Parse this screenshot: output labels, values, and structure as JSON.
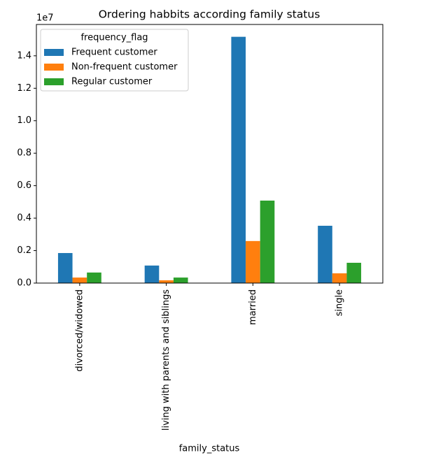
{
  "chart_data": {
    "type": "bar",
    "title": "Ordering habbits according family status",
    "x_label": "family_status",
    "scale_label": "1e7",
    "categories": [
      "divorced/widowed",
      "living with parents and siblings",
      "married",
      "single"
    ],
    "series": [
      {
        "name": "Frequent customer",
        "color": "#1f77b4",
        "values": [
          0.185,
          0.108,
          1.517,
          0.353
        ]
      },
      {
        "name": "Non-frequent customer",
        "color": "#ff7f0e",
        "values": [
          0.034,
          0.017,
          0.259,
          0.06
        ]
      },
      {
        "name": "Regular customer",
        "color": "#2ca02c",
        "values": [
          0.065,
          0.034,
          0.508,
          0.125
        ]
      }
    ],
    "legend_title": "frequency_flag",
    "legend": "upper left",
    "ylim": [
      0,
      1.593
    ],
    "yticks": [
      {
        "value": 0,
        "label": "0.0"
      },
      0.2,
      0.4,
      0.6,
      0.8,
      {
        "value": 1,
        "label": "1.0"
      },
      1.2,
      1.4
    ],
    "grid": false
  }
}
